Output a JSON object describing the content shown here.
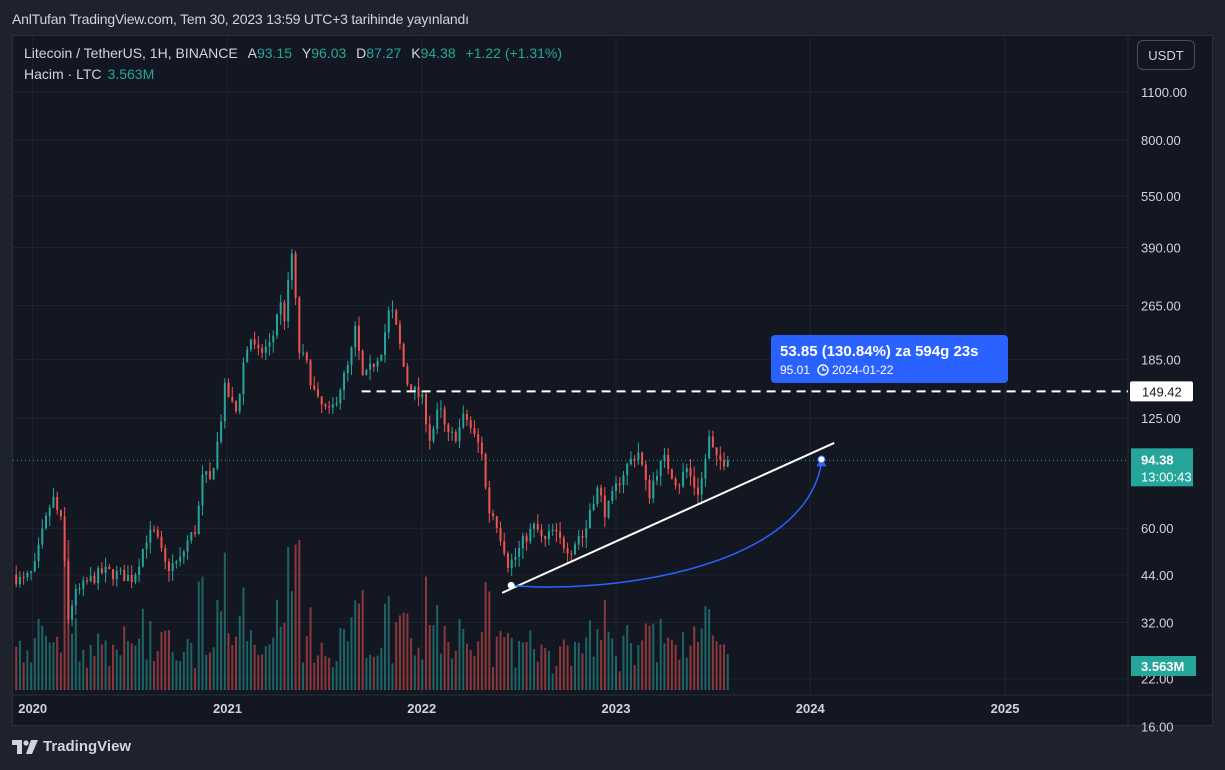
{
  "header": {
    "title": "AnlTufan TradingView.com, Tem 30, 2023 13:59 UTC+3 tarihinde yayınlandı"
  },
  "legend": {
    "symbol": "Litecoin / TetherUS, 1H, BINANCE",
    "o_label": "A",
    "o_value": "93.15",
    "h_label": "Y",
    "h_value": "96.03",
    "l_label": "D",
    "l_value": "87.27",
    "c_label": "K",
    "c_value": "94.38",
    "change": "+1.22 (+1.31%)"
  },
  "volume_legend": {
    "label": "Hacim · LTC",
    "value": "3.563M"
  },
  "currency_button": "USDT",
  "price_axis": {
    "ticks": [
      "1100.00",
      "800.00",
      "550.00",
      "390.00",
      "265.00",
      "185.00",
      "125.00",
      "60.00",
      "44.00",
      "32.00",
      "22.00",
      "16.00"
    ],
    "level_label": "149.42",
    "last_price": "94.38",
    "countdown": "13:00:43",
    "volume_label": "3.563M"
  },
  "time_axis": {
    "ticks": [
      "2020",
      "2021",
      "2022",
      "2023",
      "2024",
      "2025"
    ]
  },
  "measure_tool": {
    "headline": "53.85 (130.84%) za 594g 23s",
    "target_price": "95.01",
    "target_date": "2024-01-22"
  },
  "footer": {
    "brand": "TradingView"
  },
  "colors": {
    "background": "#131722",
    "up": "#26a69a",
    "down": "#ef5350",
    "measure": "#2962ff",
    "grid": "#1f2330",
    "text": "#d1d4dc"
  },
  "chart_data": {
    "type": "candlestick",
    "title": "Litecoin / TetherUS, 1H, BINANCE",
    "scale": "log",
    "ylim": [
      20,
      1300
    ],
    "xlim": [
      "2019-11-25",
      "2025-08-20"
    ],
    "grid": true,
    "last_price": 94.38,
    "horizontal_level": 149.42,
    "path": [
      [
        "2019-12-01",
        44
      ],
      [
        "2019-12-20",
        42
      ],
      [
        "2020-01-10",
        45
      ],
      [
        "2020-01-25",
        57
      ],
      [
        "2020-02-14",
        74
      ],
      [
        "2020-03-05",
        60
      ],
      [
        "2020-03-13",
        32
      ],
      [
        "2020-03-25",
        38
      ],
      [
        "2020-04-20",
        42
      ],
      [
        "2020-05-20",
        45
      ],
      [
        "2020-06-20",
        44
      ],
      [
        "2020-07-15",
        43
      ],
      [
        "2020-08-10",
        57
      ],
      [
        "2020-08-25",
        58
      ],
      [
        "2020-09-15",
        46
      ],
      [
        "2020-10-10",
        48
      ],
      [
        "2020-10-25",
        55
      ],
      [
        "2020-11-10",
        60
      ],
      [
        "2020-11-24",
        88
      ],
      [
        "2020-12-05",
        80
      ],
      [
        "2020-12-22",
        110
      ],
      [
        "2021-01-05",
        160
      ],
      [
        "2021-01-12",
        140
      ],
      [
        "2021-01-25",
        130
      ],
      [
        "2021-02-08",
        185
      ],
      [
        "2021-02-20",
        215
      ],
      [
        "2021-03-05",
        190
      ],
      [
        "2021-03-20",
        200
      ],
      [
        "2021-04-01",
        205
      ],
      [
        "2021-04-15",
        275
      ],
      [
        "2021-04-25",
        245
      ],
      [
        "2021-05-10",
        385
      ],
      [
        "2021-05-14",
        330
      ],
      [
        "2021-05-19",
        200
      ],
      [
        "2021-06-05",
        180
      ],
      [
        "2021-06-25",
        140
      ],
      [
        "2021-07-20",
        128
      ],
      [
        "2021-08-05",
        150
      ],
      [
        "2021-08-25",
        180
      ],
      [
        "2021-09-05",
        225
      ],
      [
        "2021-09-20",
        160
      ],
      [
        "2021-10-05",
        175
      ],
      [
        "2021-10-25",
        200
      ],
      [
        "2021-11-10",
        265
      ],
      [
        "2021-11-25",
        215
      ],
      [
        "2021-12-10",
        160
      ],
      [
        "2021-12-25",
        150
      ],
      [
        "2022-01-10",
        140
      ],
      [
        "2022-01-24",
        108
      ],
      [
        "2022-02-10",
        135
      ],
      [
        "2022-02-25",
        110
      ],
      [
        "2022-03-15",
        112
      ],
      [
        "2022-03-30",
        128
      ],
      [
        "2022-04-15",
        112
      ],
      [
        "2022-05-01",
        100
      ],
      [
        "2022-05-12",
        68
      ],
      [
        "2022-05-25",
        65
      ],
      [
        "2022-06-13",
        52
      ],
      [
        "2022-06-20",
        47
      ],
      [
        "2022-07-05",
        50
      ],
      [
        "2022-07-20",
        56
      ],
      [
        "2022-08-10",
        61
      ],
      [
        "2022-08-25",
        54
      ],
      [
        "2022-09-10",
        59
      ],
      [
        "2022-09-25",
        55
      ],
      [
        "2022-10-15",
        52
      ],
      [
        "2022-11-01",
        58
      ],
      [
        "2022-11-09",
        56
      ],
      [
        "2022-11-22",
        71
      ],
      [
        "2022-12-05",
        78
      ],
      [
        "2022-12-20",
        66
      ],
      [
        "2023-01-10",
        80
      ],
      [
        "2023-01-25",
        89
      ],
      [
        "2023-02-10",
        97
      ],
      [
        "2023-02-20",
        100
      ],
      [
        "2023-03-10",
        74
      ],
      [
        "2023-03-25",
        88
      ],
      [
        "2023-04-10",
        95
      ],
      [
        "2023-04-20",
        88
      ],
      [
        "2023-05-05",
        80
      ],
      [
        "2023-05-20",
        90
      ],
      [
        "2023-06-10",
        76
      ],
      [
        "2023-06-20",
        85
      ],
      [
        "2023-07-01",
        110
      ],
      [
        "2023-07-15",
        94
      ],
      [
        "2023-07-30",
        94.38
      ]
    ],
    "volume_unit": "M LTC",
    "last_volume": 3.563,
    "trendline": {
      "from": [
        "2022-06-01",
        39
      ],
      "to": [
        "2024-02-15",
        106
      ]
    },
    "measure": {
      "from": [
        "2022-06-18",
        41
      ],
      "to": [
        "2024-01-22",
        95.01
      ],
      "change": 53.85,
      "change_pct": 130.84
    }
  }
}
